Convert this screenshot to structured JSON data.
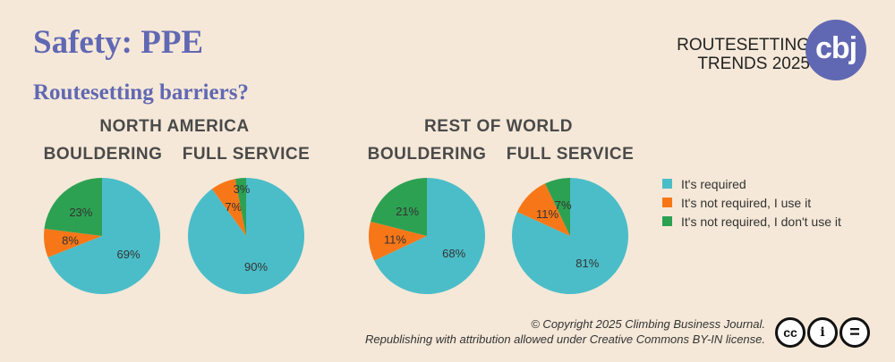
{
  "header": {
    "title": "Safety: PPE",
    "subtitle": "Routesetting barriers?",
    "brand_line1": "ROUTESETTING",
    "brand_line2": "TRENDS 2025",
    "logo_text": "cbj"
  },
  "regions": {
    "north_america": "NORTH AMERICA",
    "rest_of_world": "REST OF WORLD"
  },
  "column_labels": {
    "bouldering": "BOULDERING",
    "full_service": "FULL SERVICE"
  },
  "colors": {
    "required": "#4bbdc8",
    "not_required_use": "#f77718",
    "not_required_dont_use": "#2da152",
    "brand": "#6168b3",
    "background": "#f5e8d8"
  },
  "chart_data": [
    {
      "type": "pie",
      "region": "NORTH AMERICA",
      "title": "BOULDERING",
      "labels": [
        "It's required",
        "It's not required, I use it",
        "It's not required, I don't use it"
      ],
      "values": [
        69,
        8,
        23
      ]
    },
    {
      "type": "pie",
      "region": "NORTH AMERICA",
      "title": "FULL SERVICE",
      "labels": [
        "It's required",
        "It's not required, I use it",
        "It's not required, I don't use it"
      ],
      "values": [
        90,
        7,
        3
      ]
    },
    {
      "type": "pie",
      "region": "REST OF WORLD",
      "title": "BOULDERING",
      "labels": [
        "It's required",
        "It's not required, I use it",
        "It's not required, I don't use it"
      ],
      "values": [
        68,
        11,
        21
      ]
    },
    {
      "type": "pie",
      "region": "REST OF WORLD",
      "title": "FULL SERVICE",
      "labels": [
        "It's required",
        "It's not required, I use it",
        "It's not required, I don't use it"
      ],
      "values": [
        81,
        11,
        7
      ]
    }
  ],
  "legend": {
    "items": [
      {
        "label": "It's required",
        "color": "#4bbdc8"
      },
      {
        "label": "It's not required, I use it",
        "color": "#f77718"
      },
      {
        "label": "It's not required, I don't use it",
        "color": "#2da152"
      }
    ],
    "position": "right"
  },
  "footer": {
    "copyright_line1": "© Copyright 2025 Climbing Business Journal.",
    "copyright_line2": "Republishing with attribution allowed under Creative Commons BY-IN license.",
    "cc_label": "cc",
    "by_label": "i",
    "nd_label": "="
  }
}
